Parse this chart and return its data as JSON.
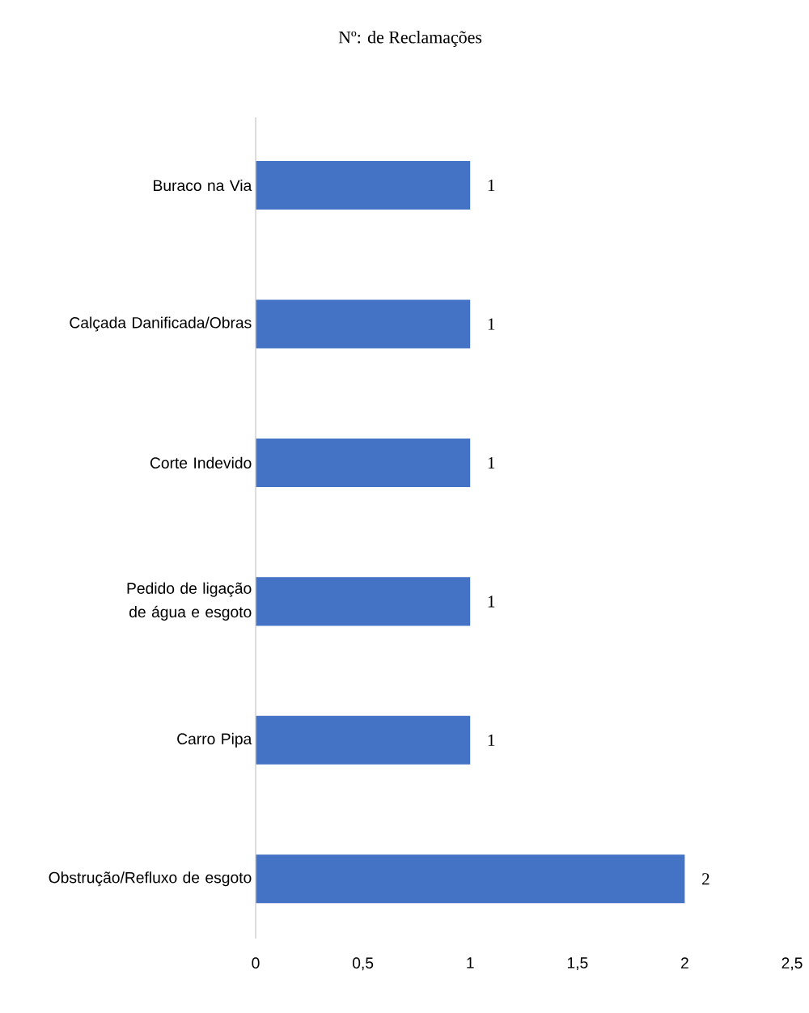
{
  "chart_data": {
    "type": "bar",
    "orientation": "horizontal",
    "title": "Nº: de Reclamações",
    "categories": [
      "Buraco na Via",
      "Calçada Danificada/Obras",
      "Corte Indevido",
      "Pedido de ligação de água e esgoto",
      "Carro Pipa",
      "Obstrução/Refluxo de esgoto"
    ],
    "values": [
      1,
      1,
      1,
      1,
      1,
      2
    ],
    "color": "#4472c4",
    "xlim": [
      0,
      2.5
    ],
    "xticks": [
      0,
      {
        "value": 0.5,
        "label": "0,5"
      },
      1,
      {
        "value": 1.5,
        "label": "1,5"
      },
      2,
      {
        "value": 2.5,
        "label": "2,5"
      }
    ],
    "data_labels": true
  }
}
